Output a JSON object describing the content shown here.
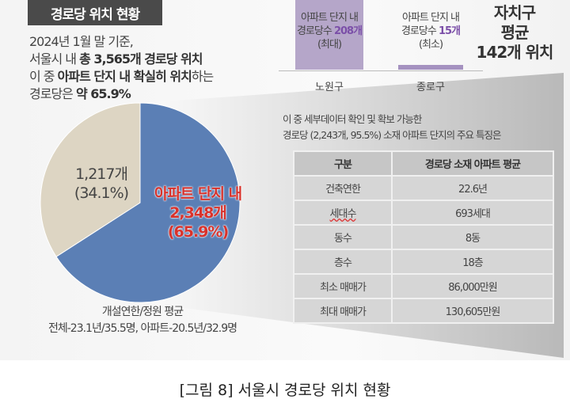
{
  "title": "경로당 위치 현황",
  "intro": {
    "line1": "2024년 1월 말 기준,",
    "line2_a": "서울시 내 ",
    "line2_b": "총 3,565개 경로당 위치",
    "line3_a": "이 중 ",
    "line3_b": "아파트 단지 내 확실히 위치",
    "line3_c": "하는",
    "line4_a": "경로당은 ",
    "line4_b": "약 65.9%"
  },
  "bars": [
    {
      "line1": "아파트 단지 내",
      "line2_a": "경로당수 ",
      "count": "208개",
      "line3": "(최대)",
      "district": "노원구",
      "value": 208
    },
    {
      "line1": "아파트 단지 내",
      "line2_a": "경로당수 ",
      "count": "15개",
      "line3": "(최소)",
      "district": "종로구",
      "value": 15
    }
  ],
  "average": {
    "line1": "자치구",
    "line2": "평균",
    "line3": "142개 위치"
  },
  "note": {
    "line1": "이 중 세부데이터 확인 및 확보 가능한",
    "line2": "경로당 (2,243개, 95.5%) 소재 아파트 단지의 주요 특징은"
  },
  "table": {
    "headers": [
      "구분",
      "경로당 소재 아파트 평균"
    ],
    "rows": [
      [
        "건축연한",
        "22.6년"
      ],
      [
        "세대수",
        "693세대"
      ],
      [
        "동수",
        "8동"
      ],
      [
        "층수",
        "18층"
      ],
      [
        "최소 매매가",
        "86,000만원"
      ],
      [
        "최대 매매가",
        "130,605만원"
      ]
    ]
  },
  "chart_data": {
    "type": "pie",
    "slices": [
      {
        "label": "아파트 단지 내",
        "count": "2,348개",
        "percent": "(65.9%)",
        "value": 65.9,
        "color": "#5b7fb5"
      },
      {
        "label": "",
        "count": "1,217개",
        "percent": "(34.1%)",
        "value": 34.1,
        "color": "#ddd5c3"
      }
    ]
  },
  "pie_note": {
    "line1": "개설연한/정원 평균",
    "line2": "전체-23.1년/35.5명, 아파트-20.5년/32.9명"
  },
  "caption": "[그림 8] 서울시 경로당 위치 현황"
}
